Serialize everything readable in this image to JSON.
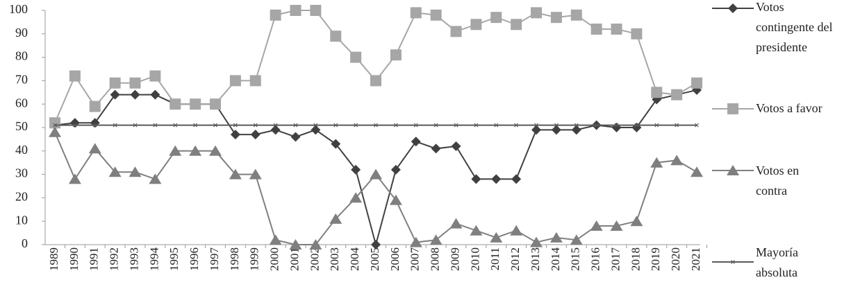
{
  "chart_data": {
    "type": "line",
    "categories": [
      "1989",
      "1990",
      "1991",
      "1992",
      "1993",
      "1994",
      "1995",
      "1996",
      "1997",
      "1998",
      "1999",
      "2000",
      "2001",
      "2002",
      "2003",
      "2004",
      "2005",
      "2006",
      "2007",
      "2008",
      "2009",
      "2010",
      "2011",
      "2012",
      "2013",
      "2014",
      "2015",
      "2016",
      "2017",
      "2018",
      "2019",
      "2020",
      "2021"
    ],
    "ylim": [
      0,
      100
    ],
    "yticks": [
      0,
      10,
      20,
      30,
      40,
      50,
      60,
      70,
      80,
      90,
      100
    ],
    "grid": false,
    "legend": "right",
    "series": [
      {
        "name": "Votos contingente del presidente",
        "color": "#404040",
        "marker": "diamond",
        "values": [
          51,
          52,
          52,
          64,
          64,
          64,
          60,
          60,
          60,
          47,
          47,
          49,
          46,
          49,
          43,
          32,
          0,
          32,
          44,
          41,
          42,
          28,
          28,
          28,
          49,
          49,
          49,
          51,
          50,
          50,
          62,
          64,
          66
        ]
      },
      {
        "name": "Votos a favor",
        "color": "#a6a6a6",
        "marker": "square",
        "values": [
          52,
          72,
          59,
          69,
          69,
          72,
          60,
          60,
          60,
          70,
          70,
          98,
          100,
          100,
          89,
          80,
          70,
          81,
          99,
          98,
          91,
          94,
          97,
          94,
          99,
          97,
          98,
          92,
          92,
          90,
          65,
          64,
          69
        ]
      },
      {
        "name": "Votos en contra",
        "color": "#7f7f7f",
        "marker": "triangle",
        "values": [
          48,
          28,
          41,
          31,
          31,
          28,
          40,
          40,
          40,
          30,
          30,
          2,
          0,
          0,
          11,
          20,
          30,
          19,
          1,
          2,
          9,
          6,
          3,
          6,
          1,
          3,
          2,
          8,
          8,
          10,
          35,
          36,
          31
        ]
      },
      {
        "name": "Mayoría absoluta",
        "color": "#595959",
        "marker": "star",
        "values": [
          51,
          51,
          51,
          51,
          51,
          51,
          51,
          51,
          51,
          51,
          51,
          51,
          51,
          51,
          51,
          51,
          51,
          51,
          51,
          51,
          51,
          51,
          51,
          51,
          51,
          51,
          51,
          51,
          51,
          51,
          51,
          51,
          51
        ]
      }
    ]
  }
}
